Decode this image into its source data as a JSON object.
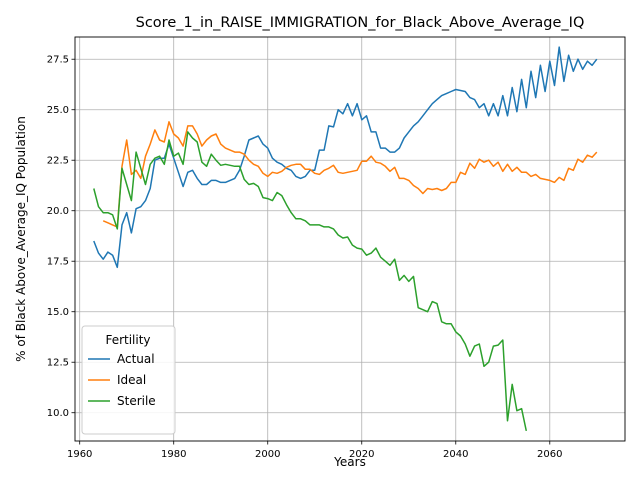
{
  "chart_data": {
    "type": "line",
    "title": "Score_1_in_RAISE_IMMIGRATION_for_Black_Above_Average_IQ",
    "xlabel": "Years",
    "ylabel": "% of Black Above_Average_IQ Population",
    "xlim": [
      1959,
      2076
    ],
    "ylim": [
      8.6,
      28.6
    ],
    "xticks": [
      1960,
      1980,
      2000,
      2020,
      2040,
      2060
    ],
    "yticks": [
      10.0,
      12.5,
      15.0,
      17.5,
      20.0,
      22.5,
      25.0,
      27.5
    ],
    "grid": true,
    "legend": {
      "title": "Fertility",
      "placement": "lower-left"
    },
    "series": [
      {
        "name": "Actual",
        "color": "#1f77b4",
        "x": [
          1963,
          1964,
          1965,
          1966,
          1967,
          1968,
          1969,
          1970,
          1971,
          1972,
          1973,
          1974,
          1975,
          1976,
          1977,
          1978,
          1979,
          1980,
          1981,
          1982,
          1983,
          1984,
          1985,
          1986,
          1987,
          1988,
          1989,
          1990,
          1991,
          1992,
          1993,
          1994,
          1995,
          1996,
          1997,
          1998,
          1999,
          2000,
          2001,
          2002,
          2003,
          2004,
          2005,
          2006,
          2007,
          2008,
          2009,
          2010,
          2011,
          2012,
          2013,
          2014,
          2015,
          2016,
          2017,
          2018,
          2019,
          2020,
          2021,
          2022,
          2023,
          2024,
          2025,
          2026,
          2027,
          2028,
          2029,
          2030,
          2031,
          2032,
          2033,
          2034,
          2035,
          2036,
          2037,
          2038,
          2039,
          2040,
          2041,
          2042,
          2043,
          2044,
          2045,
          2046,
          2047,
          2048,
          2049,
          2050,
          2051,
          2052,
          2053,
          2054,
          2055,
          2056,
          2057,
          2058,
          2059,
          2060,
          2061,
          2062,
          2063,
          2064,
          2065,
          2066,
          2067,
          2068,
          2069,
          2070
        ],
        "values": [
          18.5,
          17.9,
          17.6,
          17.95,
          17.8,
          17.2,
          19.3,
          19.9,
          18.9,
          20.1,
          20.2,
          20.5,
          21.1,
          22.5,
          22.6,
          22.6,
          23.3,
          22.6,
          21.9,
          21.2,
          21.9,
          22.0,
          21.6,
          21.3,
          21.3,
          21.5,
          21.5,
          21.4,
          21.4,
          21.5,
          21.6,
          22.0,
          22.7,
          23.5,
          23.6,
          23.7,
          23.3,
          23.1,
          22.6,
          22.4,
          22.3,
          22.1,
          22.0,
          21.7,
          21.6,
          21.7,
          22.0,
          22.0,
          23.0,
          23.0,
          24.2,
          24.15,
          25.0,
          24.8,
          25.3,
          24.7,
          25.3,
          24.5,
          24.7,
          23.9,
          23.9,
          23.1,
          23.1,
          22.9,
          22.9,
          23.1,
          23.6,
          23.9,
          24.2,
          24.4,
          24.7,
          25.0,
          25.3,
          25.5,
          25.7,
          25.8,
          25.9,
          26.0,
          25.95,
          25.9,
          25.6,
          25.5,
          25.1,
          25.3,
          24.7,
          25.3,
          24.7,
          25.7,
          24.7,
          26.1,
          24.9,
          26.5,
          25.1,
          26.9,
          25.6,
          27.2,
          25.9,
          27.4,
          26.2,
          28.1,
          26.4,
          27.7,
          26.9,
          27.5,
          27.0,
          27.4,
          27.2,
          27.5
        ]
      },
      {
        "name": "Ideal",
        "color": "#ff7f0e",
        "x": [
          1965,
          1966,
          1967,
          1968,
          1969,
          1970,
          1971,
          1972,
          1973,
          1974,
          1975,
          1976,
          1977,
          1978,
          1979,
          1980,
          1981,
          1982,
          1983,
          1984,
          1985,
          1986,
          1987,
          1988,
          1989,
          1990,
          1991,
          1992,
          1993,
          1994,
          1995,
          1996,
          1997,
          1998,
          1999,
          2000,
          2001,
          2002,
          2003,
          2004,
          2005,
          2006,
          2007,
          2008,
          2009,
          2010,
          2011,
          2012,
          2013,
          2014,
          2015,
          2016,
          2017,
          2018,
          2019,
          2020,
          2021,
          2022,
          2023,
          2024,
          2025,
          2026,
          2027,
          2028,
          2029,
          2030,
          2031,
          2032,
          2033,
          2034,
          2035,
          2036,
          2037,
          2038,
          2039,
          2040,
          2041,
          2042,
          2043,
          2044,
          2045,
          2046,
          2047,
          2048,
          2049,
          2050,
          2051,
          2052,
          2053,
          2054,
          2055,
          2056,
          2057,
          2058,
          2059,
          2060,
          2061,
          2062,
          2063,
          2064,
          2065,
          2066,
          2067,
          2068,
          2069,
          2070
        ],
        "values": [
          19.5,
          19.4,
          19.3,
          19.2,
          22.2,
          23.5,
          21.8,
          22.0,
          21.6,
          22.7,
          23.3,
          24.0,
          23.5,
          23.4,
          24.4,
          23.8,
          23.6,
          23.2,
          24.2,
          24.2,
          23.8,
          23.2,
          23.5,
          23.7,
          23.8,
          23.3,
          23.1,
          23.0,
          22.9,
          22.9,
          22.8,
          22.5,
          22.3,
          22.2,
          21.85,
          21.7,
          21.9,
          21.85,
          21.95,
          22.15,
          22.25,
          22.3,
          22.3,
          22.05,
          22.05,
          21.85,
          21.8,
          22.0,
          22.1,
          22.25,
          21.9,
          21.85,
          21.9,
          21.95,
          22.0,
          22.45,
          22.45,
          22.7,
          22.4,
          22.35,
          22.2,
          21.95,
          22.15,
          21.6,
          21.6,
          21.5,
          21.25,
          21.1,
          20.85,
          21.1,
          21.05,
          21.1,
          21.0,
          21.1,
          21.4,
          21.4,
          21.9,
          21.8,
          22.35,
          22.1,
          22.55,
          22.4,
          22.5,
          22.2,
          22.4,
          21.95,
          22.3,
          21.95,
          22.15,
          21.9,
          21.9,
          21.7,
          21.8,
          21.6,
          21.55,
          21.5,
          21.4,
          21.65,
          21.5,
          22.1,
          22.0,
          22.55,
          22.4,
          22.75,
          22.65,
          22.9
        ]
      },
      {
        "name": "Sterile",
        "color": "#2ca02c",
        "x": [
          1963,
          1964,
          1965,
          1966,
          1967,
          1968,
          1969,
          1970,
          1971,
          1972,
          1973,
          1974,
          1975,
          1976,
          1977,
          1978,
          1979,
          1980,
          1981,
          1982,
          1983,
          1984,
          1985,
          1986,
          1987,
          1988,
          1989,
          1990,
          1991,
          1992,
          1993,
          1994,
          1995,
          1996,
          1997,
          1998,
          1999,
          2000,
          2001,
          2002,
          2003,
          2004,
          2005,
          2006,
          2007,
          2008,
          2009,
          2010,
          2011,
          2012,
          2013,
          2014,
          2015,
          2016,
          2017,
          2018,
          2019,
          2020,
          2021,
          2022,
          2023,
          2024,
          2025,
          2026,
          2027,
          2028,
          2029,
          2030,
          2031,
          2032,
          2033,
          2034,
          2035,
          2036,
          2037,
          2038,
          2039,
          2040,
          2041,
          2042,
          2043,
          2044,
          2045,
          2046,
          2047,
          2048,
          2049,
          2050,
          2051,
          2052,
          2053,
          2054,
          2055
        ],
        "values": [
          21.1,
          20.2,
          19.9,
          19.9,
          19.8,
          19.1,
          22.1,
          21.3,
          20.5,
          22.9,
          22.1,
          21.3,
          22.3,
          22.6,
          22.7,
          22.3,
          23.5,
          22.7,
          22.85,
          22.3,
          23.9,
          23.6,
          23.4,
          22.4,
          22.2,
          22.8,
          22.5,
          22.25,
          22.3,
          22.25,
          22.2,
          22.2,
          21.55,
          21.3,
          21.35,
          21.2,
          20.65,
          20.6,
          20.5,
          20.9,
          20.75,
          20.3,
          19.9,
          19.6,
          19.6,
          19.5,
          19.3,
          19.3,
          19.3,
          19.2,
          19.2,
          19.1,
          18.8,
          18.65,
          18.7,
          18.3,
          18.15,
          18.1,
          17.8,
          17.9,
          18.15,
          17.7,
          17.5,
          17.3,
          17.6,
          16.55,
          16.8,
          16.5,
          16.75,
          15.2,
          15.1,
          15.0,
          15.5,
          15.4,
          14.5,
          14.4,
          14.4,
          14.0,
          13.8,
          13.4,
          12.8,
          13.3,
          13.4,
          12.3,
          12.5,
          13.3,
          13.35,
          13.6,
          9.6,
          11.4,
          10.1,
          10.2,
          9.1
        ]
      }
    ]
  }
}
